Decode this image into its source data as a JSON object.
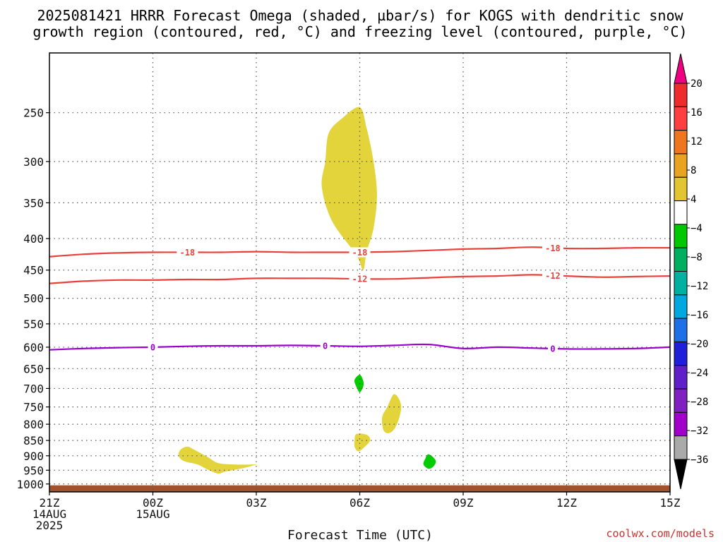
{
  "chart_data": {
    "type": "heatmap",
    "title_lines": [
      "2025081421 HRRR Forecast Omega (shaded, µbar/s) for KOGS with dendritic snow",
      "growth region (contoured, red, °C) and freezing level (contoured, purple, °C)"
    ],
    "xlabel": "Forecast Time (UTC)",
    "ylabel": "",
    "x_ticks": [
      {
        "hour": 0,
        "lines": [
          "21Z",
          "14AUG",
          "2025"
        ]
      },
      {
        "hour": 3,
        "lines": [
          "00Z",
          "15AUG"
        ]
      },
      {
        "hour": 6,
        "lines": [
          "03Z"
        ]
      },
      {
        "hour": 9,
        "lines": [
          "06Z"
        ]
      },
      {
        "hour": 12,
        "lines": [
          "09Z"
        ]
      },
      {
        "hour": 15,
        "lines": [
          "12Z"
        ]
      },
      {
        "hour": 18,
        "lines": [
          "15Z"
        ]
      }
    ],
    "xlim": [
      0,
      18
    ],
    "y_ticks": [
      250,
      300,
      350,
      400,
      450,
      500,
      550,
      600,
      650,
      700,
      750,
      800,
      850,
      900,
      950,
      1000
    ],
    "ylim_hpa": [
      1030,
      200
    ],
    "y_scale": "log-pressure",
    "grid": true,
    "colorbar": {
      "tick_labels": [
        "20",
        "16",
        "12",
        "8",
        "4",
        "−4",
        "−8",
        "−12",
        "−16",
        "−20",
        "−24",
        "−28",
        "−32",
        "−36"
      ],
      "colors": [
        "#ee0080",
        "#ee2c2c",
        "#ff3f3f",
        "#ee7621",
        "#e8a320",
        "#e2c531",
        "#ffffff",
        "#00c800",
        "#00b060",
        "#00b0a0",
        "#00a8e0",
        "#1e70e8",
        "#2020d8",
        "#6020c8",
        "#8020c0",
        "#a000c8",
        "#aaaaaa",
        "#000000"
      ]
    },
    "omega_regions": [
      {
        "sign": "positive",
        "points": [
          [
            9.0,
            245
          ],
          [
            9.2,
            265
          ],
          [
            9.4,
            300
          ],
          [
            9.5,
            340
          ],
          [
            9.4,
            385
          ],
          [
            9.2,
            420
          ],
          [
            9.1,
            450
          ],
          [
            8.9,
            425
          ],
          [
            8.2,
            375
          ],
          [
            7.9,
            330
          ],
          [
            8.0,
            300
          ],
          [
            8.1,
            270
          ],
          [
            8.5,
            255
          ]
        ]
      },
      {
        "sign": "positive",
        "points": [
          [
            4.0,
            870
          ],
          [
            4.2,
            880
          ],
          [
            4.6,
            905
          ],
          [
            4.9,
            925
          ],
          [
            5.4,
            930
          ],
          [
            5.9,
            930
          ],
          [
            6.0,
            930
          ],
          [
            5.6,
            943
          ],
          [
            5.1,
            955
          ],
          [
            4.9,
            962
          ],
          [
            4.6,
            948
          ],
          [
            4.3,
            930
          ],
          [
            3.9,
            918
          ],
          [
            3.75,
            900
          ],
          [
            3.8,
            880
          ]
        ]
      },
      {
        "sign": "positive",
        "points": [
          [
            10.0,
            715
          ],
          [
            10.2,
            745
          ],
          [
            10.1,
            795
          ],
          [
            9.9,
            825
          ],
          [
            9.7,
            820
          ],
          [
            9.65,
            780
          ],
          [
            9.8,
            750
          ]
        ]
      },
      {
        "sign": "positive",
        "points": [
          [
            8.9,
            830
          ],
          [
            9.2,
            832
          ],
          [
            9.3,
            850
          ],
          [
            9.1,
            875
          ],
          [
            8.95,
            885
          ],
          [
            8.85,
            870
          ],
          [
            8.85,
            850
          ]
        ]
      },
      {
        "sign": "negative",
        "points": [
          [
            9.0,
            665
          ],
          [
            9.1,
            680
          ],
          [
            9.1,
            695
          ],
          [
            9.0,
            710
          ],
          [
            8.9,
            695
          ],
          [
            8.85,
            678
          ]
        ]
      },
      {
        "sign": "negative",
        "points": [
          [
            11.0,
            895
          ],
          [
            11.2,
            915
          ],
          [
            11.15,
            935
          ],
          [
            11.0,
            945
          ],
          [
            10.85,
            930
          ],
          [
            10.9,
            910
          ]
        ]
      }
    ],
    "dgz_contours": [
      {
        "label": "-18",
        "color": "#e8413a",
        "points": [
          [
            0,
            428
          ],
          [
            1,
            424
          ],
          [
            2,
            422
          ],
          [
            3,
            421
          ],
          [
            4,
            421
          ],
          [
            5,
            421
          ],
          [
            6,
            420
          ],
          [
            7,
            421
          ],
          [
            8,
            421
          ],
          [
            9,
            421
          ],
          [
            10,
            420
          ],
          [
            11,
            418
          ],
          [
            12,
            416
          ],
          [
            13,
            415
          ],
          [
            14,
            413
          ],
          [
            15,
            415
          ],
          [
            16,
            415
          ],
          [
            17,
            414
          ],
          [
            18,
            414
          ]
        ],
        "label_hours": [
          4,
          9,
          14.6
        ]
      },
      {
        "label": "-12",
        "color": "#e8413a",
        "points": [
          [
            0,
            473
          ],
          [
            1,
            469
          ],
          [
            2,
            467
          ],
          [
            3,
            467
          ],
          [
            4,
            466
          ],
          [
            5,
            466
          ],
          [
            6,
            464
          ],
          [
            7,
            464
          ],
          [
            8,
            464
          ],
          [
            9,
            465
          ],
          [
            10,
            465
          ],
          [
            11,
            463
          ],
          [
            12,
            461
          ],
          [
            13,
            460
          ],
          [
            14,
            458
          ],
          [
            15,
            460
          ],
          [
            16,
            462
          ],
          [
            17,
            461
          ],
          [
            18,
            460
          ]
        ],
        "label_hours": [
          9,
          14.6
        ]
      }
    ],
    "freezing_contour": {
      "label": "0",
      "color": "#9900cc",
      "points": [
        [
          0,
          606
        ],
        [
          1,
          603
        ],
        [
          2,
          601
        ],
        [
          3,
          600
        ],
        [
          4,
          598
        ],
        [
          5,
          597
        ],
        [
          6,
          597
        ],
        [
          7,
          596
        ],
        [
          8,
          597
        ],
        [
          9,
          598
        ],
        [
          10,
          596
        ],
        [
          11,
          594
        ],
        [
          12,
          603
        ],
        [
          13,
          600
        ],
        [
          14,
          602
        ],
        [
          15,
          604
        ],
        [
          16,
          604
        ],
        [
          17,
          603
        ],
        [
          18,
          600
        ]
      ],
      "label_hours": [
        3,
        8,
        14.6
      ]
    },
    "terrain_top_hpa": 1005,
    "terrain_color": "#a0522d"
  },
  "credit": "coolwx.com/models"
}
